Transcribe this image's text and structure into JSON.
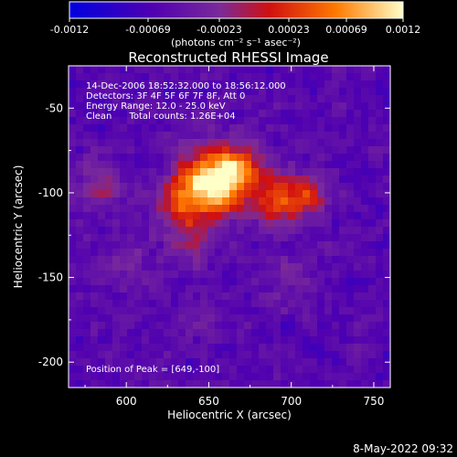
{
  "chart_data": {
    "type": "heatmap",
    "title": "Reconstructed RHESSI Image",
    "xlabel": "Heliocentric X (arcsec)",
    "ylabel": "Heliocentric Y (arcsec)",
    "xlim": [
      565,
      760
    ],
    "ylim": [
      -215,
      -25
    ],
    "x_ticks": [
      600,
      650,
      700,
      750
    ],
    "y_ticks": [
      -200,
      -150,
      -100,
      -50
    ],
    "colorbar": {
      "range": [
        -0.0012,
        0.0012
      ],
      "tick_labels": [
        "-0.0012",
        "-0.00069",
        "-0.00023",
        "0.00023",
        "0.00069",
        "0.0012"
      ],
      "units": "(photons cm⁻² s⁻¹ asec⁻²)",
      "colors": [
        "#0000e0",
        "#5000b0",
        "#7a2a9a",
        "#d01010",
        "#ff7a00",
        "#ffffc8"
      ]
    },
    "annotations": [
      "14-Dec-2006 18:52:32.000 to 18:56:12.000",
      "Detectors: 3F 4F 5F 6F 7F 8F, Att 0",
      "Energy Range: 12.0 - 25.0 keV",
      "Clean      Total counts: 1.26E+04"
    ],
    "peak_label": "Position of Peak = [649,-100]",
    "peak": [
      649,
      -100
    ],
    "sources": [
      {
        "x": 650,
        "y": -95,
        "amp": 1.0,
        "sigma": 14
      },
      {
        "x": 668,
        "y": -85,
        "amp": 0.55,
        "sigma": 10
      },
      {
        "x": 692,
        "y": -103,
        "amp": 0.55,
        "sigma": 11
      },
      {
        "x": 712,
        "y": -102,
        "amp": 0.35,
        "sigma": 9
      },
      {
        "x": 630,
        "y": -110,
        "amp": 0.3,
        "sigma": 10
      },
      {
        "x": 585,
        "y": -95,
        "amp": 0.25,
        "sigma": 12
      },
      {
        "x": 600,
        "y": -140,
        "amp": 0.2,
        "sigma": 12
      },
      {
        "x": 640,
        "y": -130,
        "amp": 0.2,
        "sigma": 10
      },
      {
        "x": 700,
        "y": -150,
        "amp": 0.15,
        "sigma": 12
      },
      {
        "x": 640,
        "y": -175,
        "amp": 0.1,
        "sigma": 12
      }
    ]
  },
  "footer_date": "8-May-2022 09:32"
}
